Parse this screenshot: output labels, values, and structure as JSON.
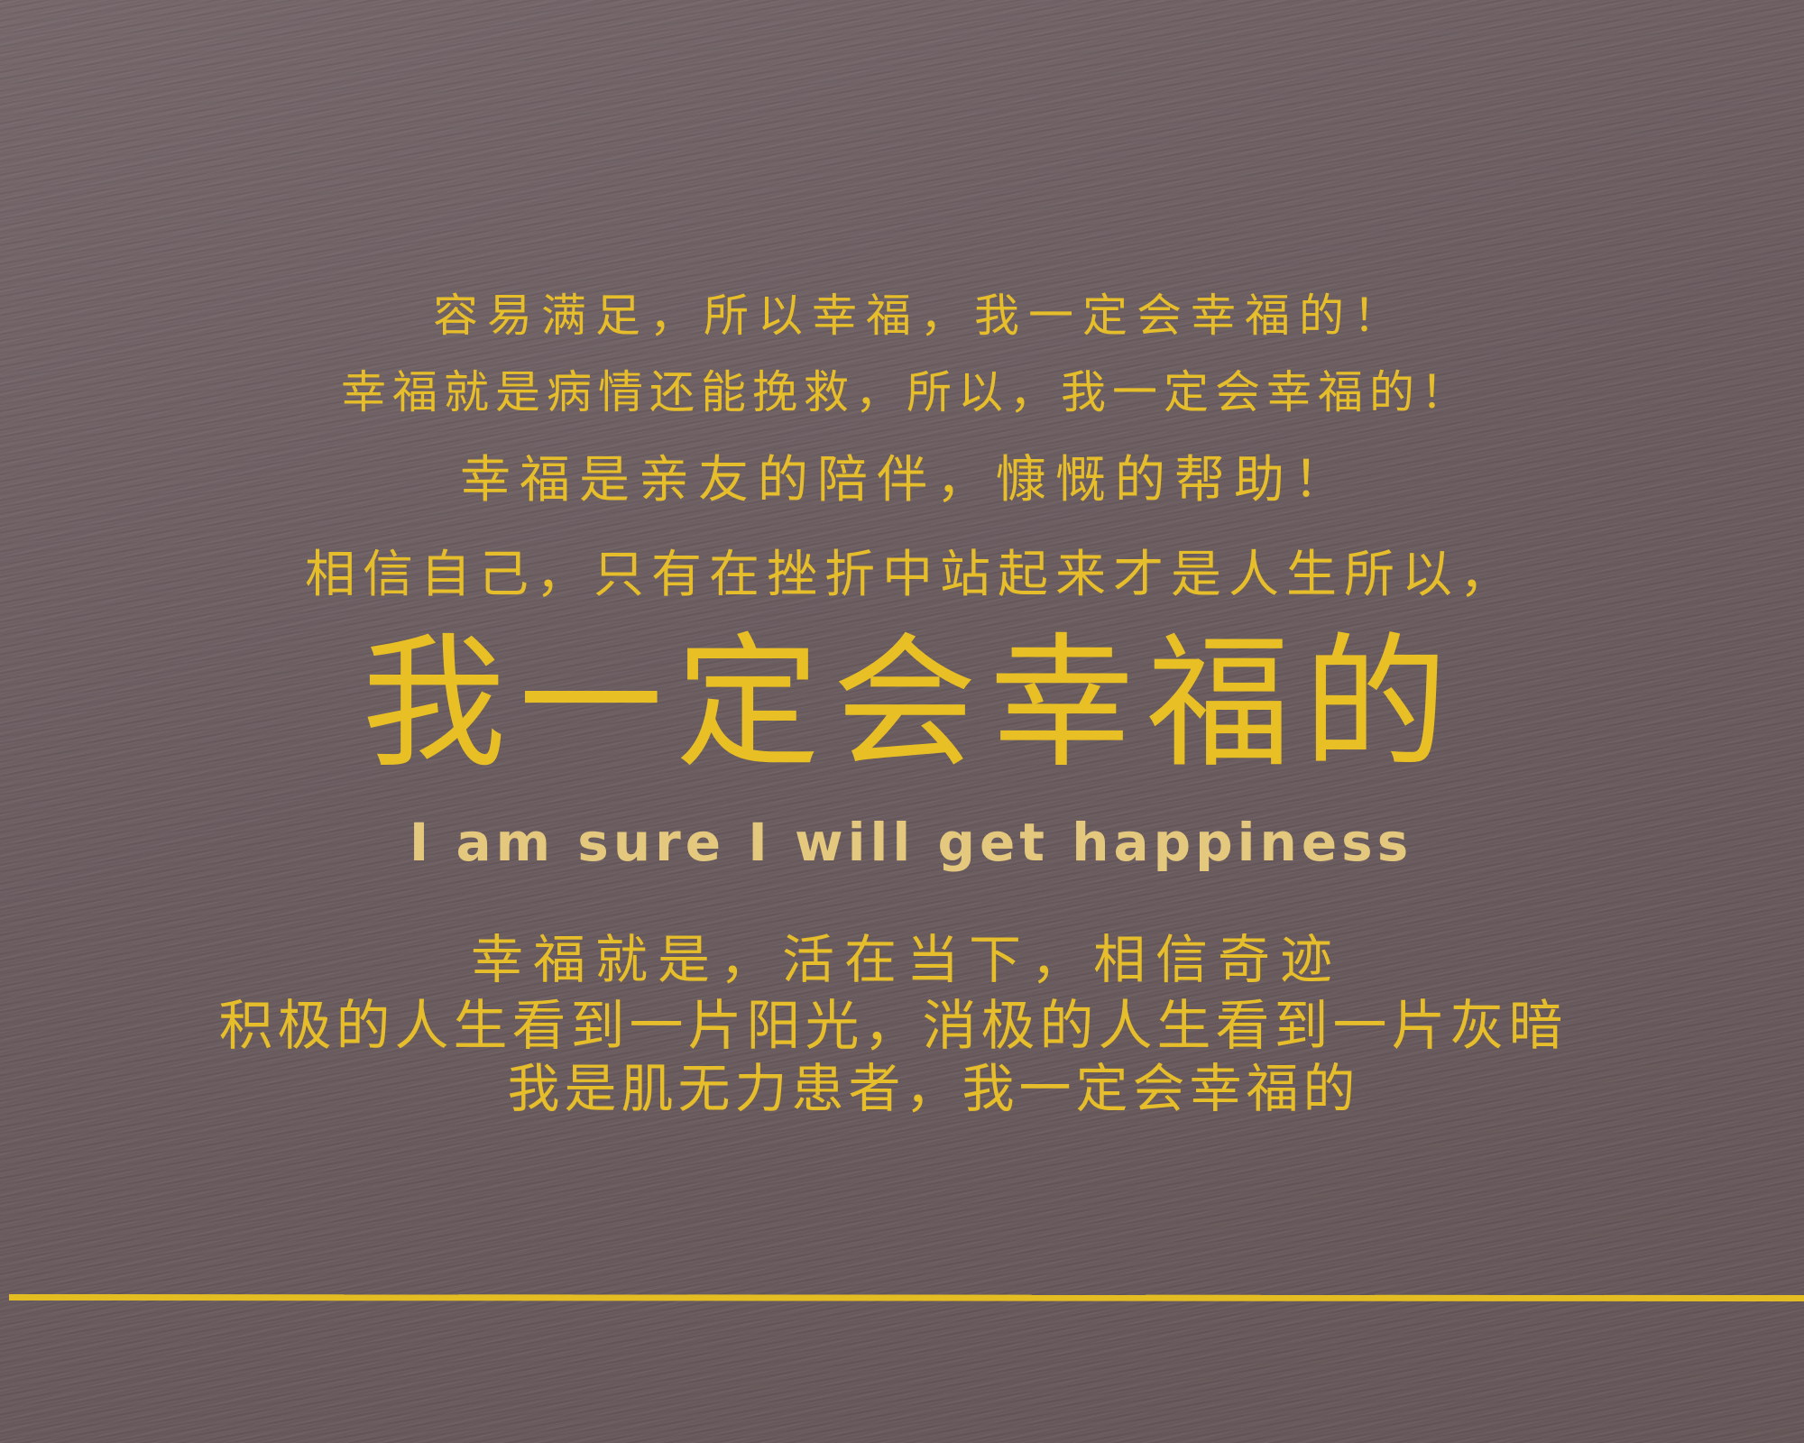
{
  "lines": [
    "容易满足，所以幸福，我一定会幸福的！",
    "幸福就是病情还能挽救，所以，我一定会幸福的！",
    "幸福是亲友的陪伴，慷慨的帮助！",
    "相信自己，只有在挫折中站起来才是人生所以，"
  ],
  "headline": "我一定会幸福的",
  "subtitle": "I am sure I will get happiness",
  "closing_lines": [
    "幸福就是，活在当下，相信奇迹",
    "积极的人生看到一片阳光，消极的人生看到一片灰暗",
    "我是肌无力患者，我一定会幸福的"
  ],
  "colors": {
    "background": "#6c5d60",
    "text_gold": "#e6bd2a",
    "subtitle_gold": "#e4c87e",
    "divider": "#e3bd21"
  }
}
